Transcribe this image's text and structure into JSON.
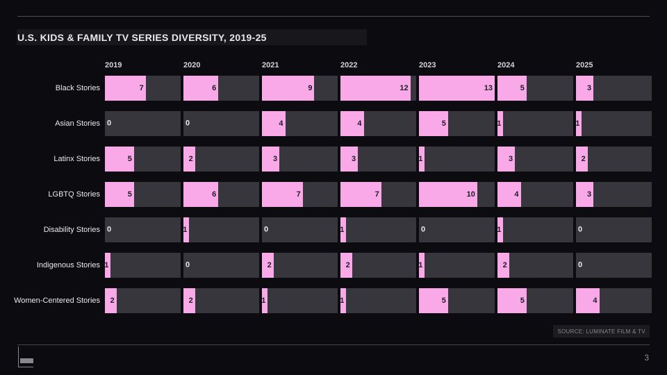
{
  "footer": {
    "source": "SOURCE: LUMINATE FILM & TV",
    "page_number": "3"
  },
  "colors": {
    "background": "#0c0c10",
    "bar_pink": "#f9a9e8",
    "track_gray": "#36363c",
    "title_band": "#17171c",
    "bar_value_text": "#1d1d23",
    "zero_value_text": "#eaeaee"
  },
  "chart_data": {
    "type": "bar",
    "title": "U.S. KIDS & FAMILY TV SERIES DIVERSITY, 2019-25",
    "categories": [
      "2019",
      "2020",
      "2021",
      "2022",
      "2023",
      "2024",
      "2025"
    ],
    "series": [
      {
        "name": "Black Stories",
        "values": [
          7,
          6,
          9,
          12,
          13,
          5,
          3
        ]
      },
      {
        "name": "Asian Stories",
        "values": [
          0,
          0,
          4,
          4,
          5,
          1,
          1
        ]
      },
      {
        "name": "Latinx Stories",
        "values": [
          5,
          2,
          3,
          3,
          1,
          3,
          2
        ]
      },
      {
        "name": "LGBTQ Stories",
        "values": [
          5,
          6,
          7,
          7,
          10,
          4,
          3
        ]
      },
      {
        "name": "Disability Stories",
        "values": [
          0,
          1,
          0,
          1,
          0,
          1,
          0
        ]
      },
      {
        "name": "Indigenous Stories",
        "values": [
          1,
          0,
          2,
          2,
          1,
          2,
          0
        ]
      },
      {
        "name": "Women-Centered Stories",
        "values": [
          2,
          2,
          1,
          1,
          5,
          5,
          4
        ]
      }
    ],
    "max_value": 13,
    "value_labels": true,
    "orientation": "horizontal",
    "grid": false,
    "legend": "none"
  }
}
